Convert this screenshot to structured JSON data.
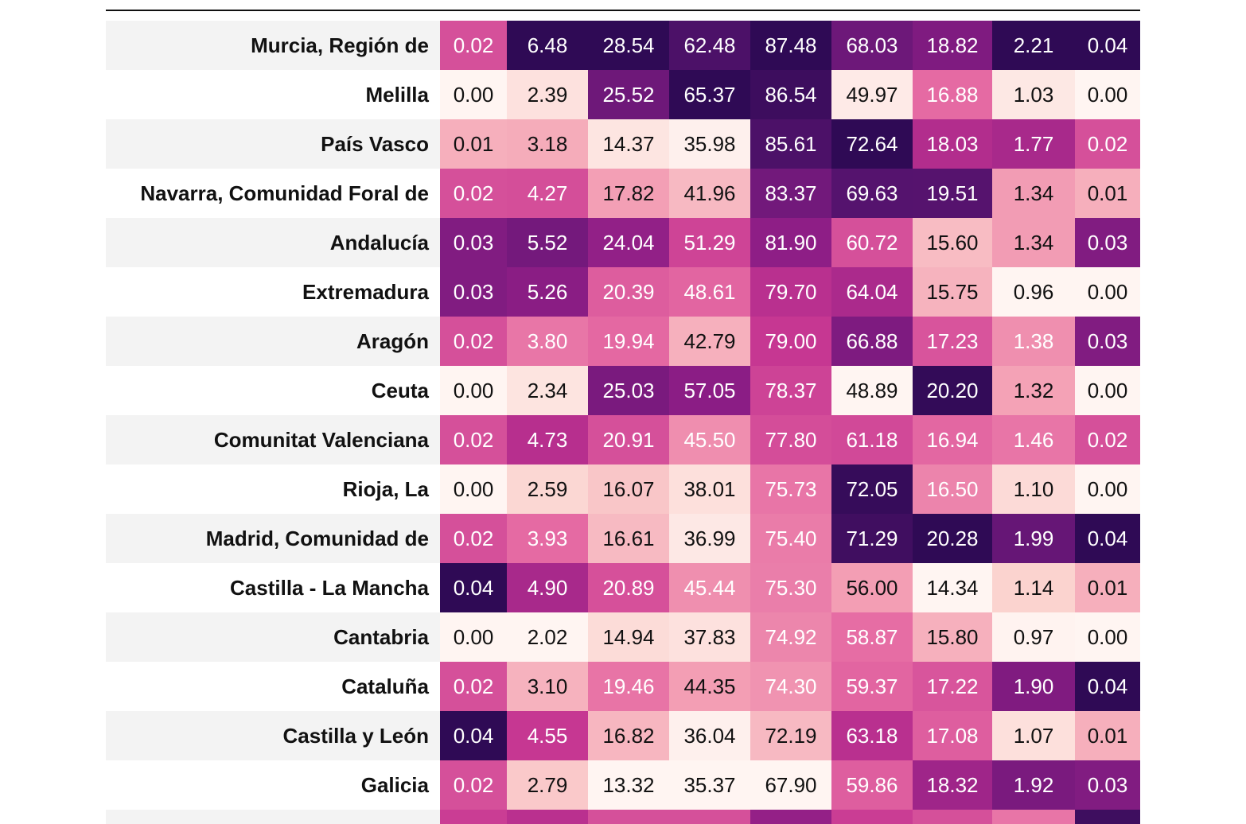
{
  "chart_data": {
    "type": "heatmap",
    "colormap": [
      "#fff5f2",
      "#fbd3cf",
      "#f4a3b6",
      "#e56aa3",
      "#c53591",
      "#8e1e86",
      "#5a1471",
      "#2f0a55"
    ],
    "rows": [
      {
        "label": "Murcia, Región de",
        "values": [
          "0.02",
          "6.48",
          "28.54",
          "62.48",
          "87.48",
          "68.03",
          "18.82",
          "2.21",
          "0.04"
        ]
      },
      {
        "label": "Melilla",
        "values": [
          "0.00",
          "2.39",
          "25.52",
          "65.37",
          "86.54",
          "49.97",
          "16.88",
          "1.03",
          "0.00"
        ]
      },
      {
        "label": "País Vasco",
        "values": [
          "0.01",
          "3.18",
          "14.37",
          "35.98",
          "85.61",
          "72.64",
          "18.03",
          "1.77",
          "0.02"
        ]
      },
      {
        "label": "Navarra, Comunidad Foral de",
        "values": [
          "0.02",
          "4.27",
          "17.82",
          "41.96",
          "83.37",
          "69.63",
          "19.51",
          "1.34",
          "0.01"
        ]
      },
      {
        "label": "Andalucía",
        "values": [
          "0.03",
          "5.52",
          "24.04",
          "51.29",
          "81.90",
          "60.72",
          "15.60",
          "1.34",
          "0.03"
        ]
      },
      {
        "label": "Extremadura",
        "values": [
          "0.03",
          "5.26",
          "20.39",
          "48.61",
          "79.70",
          "64.04",
          "15.75",
          "0.96",
          "0.00"
        ]
      },
      {
        "label": "Aragón",
        "values": [
          "0.02",
          "3.80",
          "19.94",
          "42.79",
          "79.00",
          "66.88",
          "17.23",
          "1.38",
          "0.03"
        ]
      },
      {
        "label": "Ceuta",
        "values": [
          "0.00",
          "2.34",
          "25.03",
          "57.05",
          "78.37",
          "48.89",
          "20.20",
          "1.32",
          "0.00"
        ]
      },
      {
        "label": "Comunitat Valenciana",
        "values": [
          "0.02",
          "4.73",
          "20.91",
          "45.50",
          "77.80",
          "61.18",
          "16.94",
          "1.46",
          "0.02"
        ]
      },
      {
        "label": "Rioja, La",
        "values": [
          "0.00",
          "2.59",
          "16.07",
          "38.01",
          "75.73",
          "72.05",
          "16.50",
          "1.10",
          "0.00"
        ]
      },
      {
        "label": "Madrid, Comunidad de",
        "values": [
          "0.02",
          "3.93",
          "16.61",
          "36.99",
          "75.40",
          "71.29",
          "20.28",
          "1.99",
          "0.04"
        ]
      },
      {
        "label": "Castilla - La Mancha",
        "values": [
          "0.04",
          "4.90",
          "20.89",
          "45.44",
          "75.30",
          "56.00",
          "14.34",
          "1.14",
          "0.01"
        ]
      },
      {
        "label": "Cantabria",
        "values": [
          "0.00",
          "2.02",
          "14.94",
          "37.83",
          "74.92",
          "58.87",
          "15.80",
          "0.97",
          "0.00"
        ]
      },
      {
        "label": "Cataluña",
        "values": [
          "0.02",
          "3.10",
          "19.46",
          "44.35",
          "74.30",
          "59.37",
          "17.22",
          "1.90",
          "0.04"
        ]
      },
      {
        "label": "Castilla y León",
        "values": [
          "0.04",
          "4.55",
          "16.82",
          "36.04",
          "72.19",
          "63.18",
          "17.08",
          "1.07",
          "0.01"
        ]
      },
      {
        "label": "Galicia",
        "values": [
          "0.02",
          "2.79",
          "13.32",
          "35.37",
          "67.90",
          "59.86",
          "18.32",
          "1.92",
          "0.03"
        ]
      }
    ],
    "partial_row_intensity": [
      0.55,
      0.6,
      0.5,
      0.5,
      0.7,
      0.55,
      0.5,
      0.4,
      0.95
    ]
  }
}
